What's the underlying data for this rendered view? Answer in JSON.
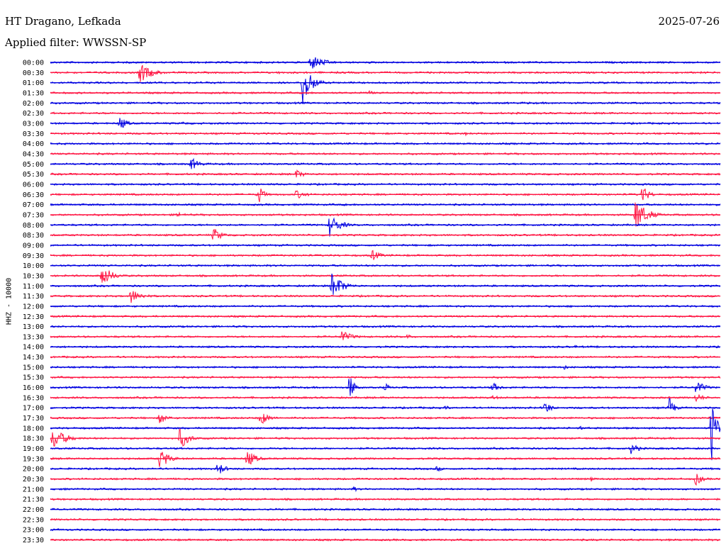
{
  "header": {
    "station": "HT Dragano, Lefkada",
    "date": "2025-07-26",
    "filter_label": "Applied filter: WWSSN-SP"
  },
  "chart_data": {
    "type": "line",
    "title": "HT Dragano, Lefkada",
    "ylabel": "HHZ - 10000",
    "trace_colors": [
      "#0000e0",
      "#ff1744"
    ],
    "row_labels": [
      "00:00",
      "00:30",
      "01:00",
      "01:30",
      "02:00",
      "02:30",
      "03:00",
      "03:30",
      "04:00",
      "04:30",
      "05:00",
      "05:30",
      "06:00",
      "06:30",
      "07:00",
      "07:30",
      "08:00",
      "08:30",
      "09:00",
      "09:30",
      "10:00",
      "10:30",
      "11:00",
      "11:30",
      "12:00",
      "12:30",
      "13:00",
      "13:30",
      "14:00",
      "14:30",
      "15:00",
      "15:30",
      "16:00",
      "16:30",
      "17:00",
      "17:30",
      "18:00",
      "18:30",
      "19:00",
      "19:30",
      "20:00",
      "20:30",
      "21:00",
      "21:30",
      "22:00",
      "22:30",
      "23:00",
      "23:30"
    ],
    "events": [
      {
        "row": 0,
        "minute": 11.6,
        "amplitude": 0.6,
        "duration_min": 0.4
      },
      {
        "row": 0,
        "minute": 11.7,
        "amplitude": 0.8,
        "duration_min": 1.5
      },
      {
        "row": 1,
        "minute": 4.0,
        "amplitude": 1.1,
        "duration_min": 1.4
      },
      {
        "row": 1,
        "minute": 10.2,
        "amplitude": 0.2,
        "duration_min": 0.5
      },
      {
        "row": 2,
        "minute": 11.3,
        "amplitude": 2.4,
        "duration_min": 1.0
      },
      {
        "row": 3,
        "minute": 14.3,
        "amplitude": 0.3,
        "duration_min": 0.5
      },
      {
        "row": 3,
        "minute": 17.8,
        "amplitude": 0.1,
        "duration_min": 0.3
      },
      {
        "row": 4,
        "minute": 21.4,
        "amplitude": 0.2,
        "duration_min": 0.3
      },
      {
        "row": 6,
        "minute": 3.1,
        "amplitude": 0.8,
        "duration_min": 0.8
      },
      {
        "row": 6,
        "minute": 5.9,
        "amplitude": 0.2,
        "duration_min": 1.0
      },
      {
        "row": 7,
        "minute": 18.6,
        "amplitude": 0.2,
        "duration_min": 0.3
      },
      {
        "row": 8,
        "minute": 29.3,
        "amplitude": 0.3,
        "duration_min": 0.3
      },
      {
        "row": 10,
        "minute": 6.3,
        "amplitude": 0.7,
        "duration_min": 1.0
      },
      {
        "row": 11,
        "minute": 11.0,
        "amplitude": 0.5,
        "duration_min": 1.0
      },
      {
        "row": 13,
        "minute": 9.3,
        "amplitude": 1.2,
        "duration_min": 0.6
      },
      {
        "row": 13,
        "minute": 11.0,
        "amplitude": 0.5,
        "duration_min": 1.2
      },
      {
        "row": 13,
        "minute": 26.5,
        "amplitude": 1.0,
        "duration_min": 0.8
      },
      {
        "row": 14,
        "minute": 13.2,
        "amplitude": 0.3,
        "duration_min": 0.4
      },
      {
        "row": 15,
        "minute": 5.7,
        "amplitude": 0.3,
        "duration_min": 1.0
      },
      {
        "row": 15,
        "minute": 26.2,
        "amplitude": 1.7,
        "duration_min": 1.3
      },
      {
        "row": 16,
        "minute": 12.5,
        "amplitude": 1.2,
        "duration_min": 1.2
      },
      {
        "row": 17,
        "minute": 7.3,
        "amplitude": 0.8,
        "duration_min": 1.0
      },
      {
        "row": 19,
        "minute": 14.4,
        "amplitude": 0.6,
        "duration_min": 1.0
      },
      {
        "row": 21,
        "minute": 2.3,
        "amplitude": 1.2,
        "duration_min": 1.2
      },
      {
        "row": 22,
        "minute": 12.6,
        "amplitude": 1.5,
        "duration_min": 1.2
      },
      {
        "row": 23,
        "minute": 3.6,
        "amplitude": 0.8,
        "duration_min": 1.2
      },
      {
        "row": 27,
        "minute": 13.0,
        "amplitude": 0.7,
        "duration_min": 1.3
      },
      {
        "row": 27,
        "minute": 16.0,
        "amplitude": 0.3,
        "duration_min": 0.5
      },
      {
        "row": 28,
        "minute": 23.5,
        "amplitude": 0.2,
        "duration_min": 0.5
      },
      {
        "row": 30,
        "minute": 23.0,
        "amplitude": 0.3,
        "duration_min": 0.5
      },
      {
        "row": 32,
        "minute": 13.4,
        "amplitude": 1.6,
        "duration_min": 0.5
      },
      {
        "row": 32,
        "minute": 15.0,
        "amplitude": 0.5,
        "duration_min": 0.5
      },
      {
        "row": 32,
        "minute": 19.8,
        "amplitude": 0.6,
        "duration_min": 0.8
      },
      {
        "row": 32,
        "minute": 28.9,
        "amplitude": 0.8,
        "duration_min": 1.0
      },
      {
        "row": 33,
        "minute": 19.8,
        "amplitude": 0.3,
        "duration_min": 0.8
      },
      {
        "row": 33,
        "minute": 28.9,
        "amplitude": 0.5,
        "duration_min": 1.0
      },
      {
        "row": 34,
        "minute": 17.7,
        "amplitude": 0.3,
        "duration_min": 0.5
      },
      {
        "row": 34,
        "minute": 22.1,
        "amplitude": 0.8,
        "duration_min": 0.8
      },
      {
        "row": 34,
        "minute": 27.7,
        "amplitude": 1.2,
        "duration_min": 0.6
      },
      {
        "row": 35,
        "minute": 4.9,
        "amplitude": 0.7,
        "duration_min": 0.8
      },
      {
        "row": 35,
        "minute": 9.4,
        "amplitude": 0.8,
        "duration_min": 1.0
      },
      {
        "row": 36,
        "minute": 23.7,
        "amplitude": 0.3,
        "duration_min": 0.4
      },
      {
        "row": 36,
        "minute": 29.6,
        "amplitude": 4.0,
        "duration_min": 0.5
      },
      {
        "row": 37,
        "minute": 0.1,
        "amplitude": 1.2,
        "duration_min": 1.5
      },
      {
        "row": 37,
        "minute": 5.8,
        "amplitude": 1.2,
        "duration_min": 1.0
      },
      {
        "row": 38,
        "minute": 26.0,
        "amplitude": 0.6,
        "duration_min": 1.0
      },
      {
        "row": 39,
        "minute": 4.9,
        "amplitude": 1.2,
        "duration_min": 1.0
      },
      {
        "row": 39,
        "minute": 8.8,
        "amplitude": 1.0,
        "duration_min": 1.0
      },
      {
        "row": 40,
        "minute": 7.5,
        "amplitude": 0.8,
        "duration_min": 0.8
      },
      {
        "row": 40,
        "minute": 17.3,
        "amplitude": 0.3,
        "duration_min": 0.8
      },
      {
        "row": 41,
        "minute": 24.2,
        "amplitude": 0.3,
        "duration_min": 0.6
      },
      {
        "row": 41,
        "minute": 28.9,
        "amplitude": 0.7,
        "duration_min": 0.8
      },
      {
        "row": 42,
        "minute": 0.5,
        "amplitude": 0.2,
        "duration_min": 0.6
      },
      {
        "row": 42,
        "minute": 13.6,
        "amplitude": 0.4,
        "duration_min": 0.3
      }
    ]
  }
}
